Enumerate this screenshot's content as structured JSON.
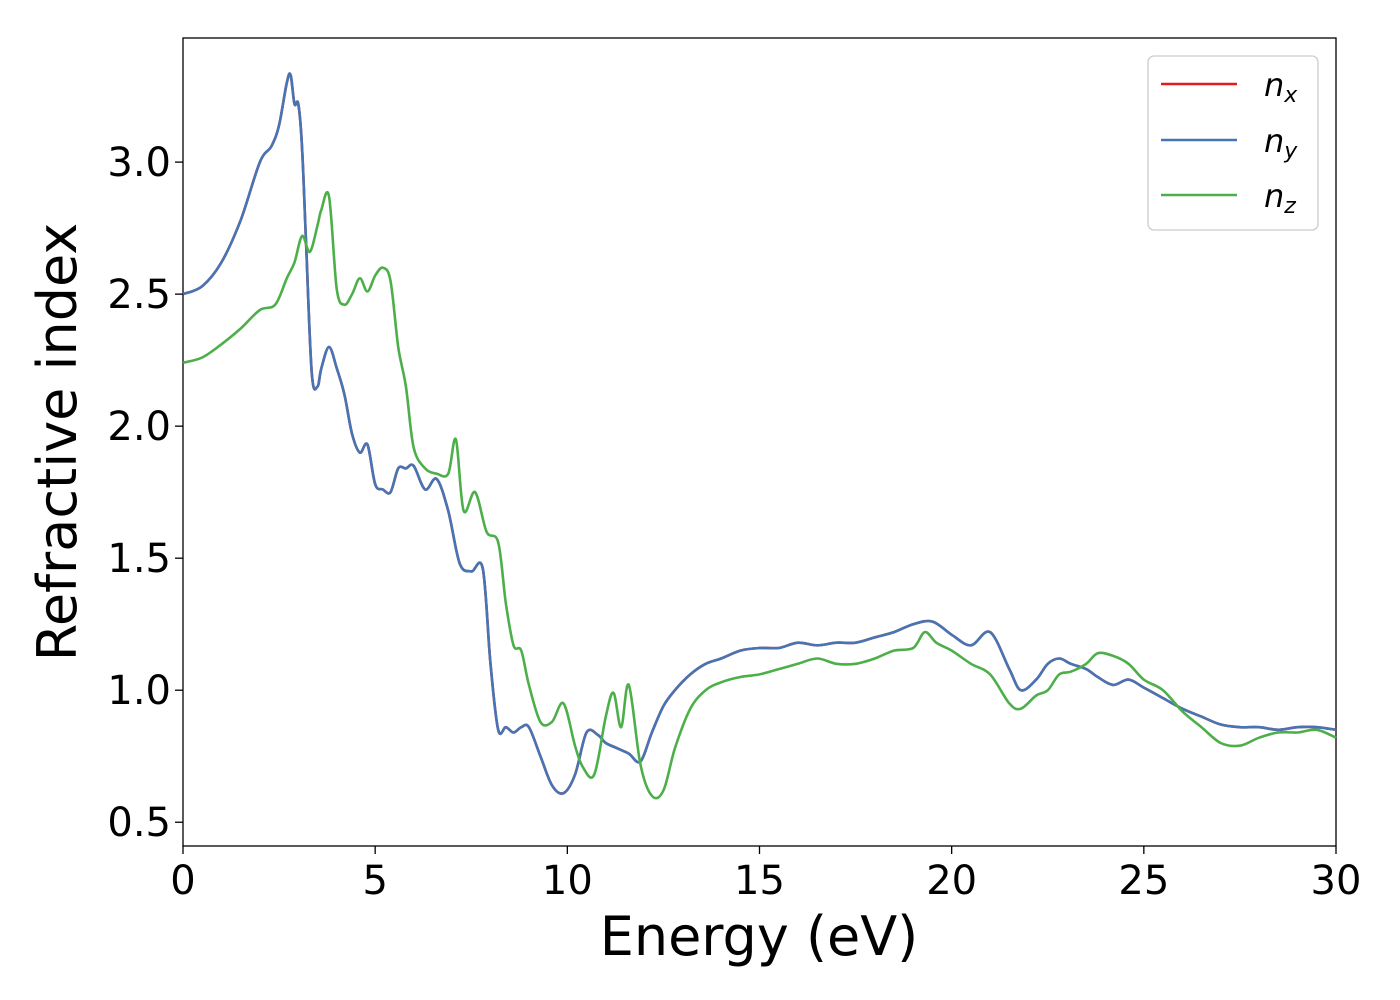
{
  "chart_data": {
    "type": "line",
    "title": "",
    "xlabel": "Energy (eV)",
    "ylabel": "Refractive index",
    "xlim": [
      0,
      30
    ],
    "ylim": [
      0.41,
      3.47
    ],
    "xticks": [
      0,
      5,
      10,
      15,
      20,
      25,
      30
    ],
    "yticks": [
      0.5,
      1.0,
      1.5,
      2.0,
      2.5,
      3.0
    ],
    "xtick_labels": [
      "0",
      "5",
      "10",
      "15",
      "20",
      "25",
      "30"
    ],
    "ytick_labels": [
      "0.5",
      "1.0",
      "1.5",
      "2.0",
      "2.5",
      "3.0"
    ],
    "grid": false,
    "legend_position": "top-right",
    "series": [
      {
        "name_base": "n",
        "name_sub": "x",
        "color": "#e41a1c",
        "x": [
          0,
          0.5,
          1,
          1.5,
          2,
          2.3,
          2.5,
          2.7,
          2.8,
          2.9,
          3.0,
          3.1,
          3.2,
          3.35,
          3.5,
          3.6,
          3.8,
          4.0,
          4.2,
          4.4,
          4.6,
          4.8,
          5.0,
          5.2,
          5.4,
          5.6,
          5.8,
          6.0,
          6.3,
          6.6,
          6.9,
          7.2,
          7.5,
          7.8,
          8.0,
          8.2,
          8.4,
          8.6,
          8.8,
          9.0,
          9.3,
          9.6,
          9.9,
          10.2,
          10.5,
          10.8,
          11.0,
          11.3,
          11.6,
          11.9,
          12.2,
          12.5,
          12.8,
          13.2,
          13.6,
          14.0,
          14.5,
          15.0,
          15.5,
          16.0,
          16.5,
          17.0,
          17.5,
          18.0,
          18.5,
          19.0,
          19.5,
          20.0,
          20.5,
          21.0,
          21.5,
          21.8,
          22.2,
          22.5,
          22.8,
          23.1,
          23.5,
          23.8,
          24.2,
          24.6,
          25.0,
          25.5,
          26.0,
          26.5,
          27.0,
          27.5,
          28.0,
          28.5,
          29.0,
          29.5,
          30.0
        ],
        "y": [
          2.5,
          2.53,
          2.62,
          2.78,
          3.0,
          3.06,
          3.14,
          3.3,
          3.33,
          3.22,
          3.22,
          3.05,
          2.7,
          2.2,
          2.15,
          2.22,
          2.3,
          2.22,
          2.12,
          1.97,
          1.9,
          1.93,
          1.78,
          1.76,
          1.75,
          1.84,
          1.84,
          1.85,
          1.76,
          1.8,
          1.68,
          1.48,
          1.45,
          1.46,
          1.1,
          0.85,
          0.86,
          0.84,
          0.86,
          0.86,
          0.75,
          0.64,
          0.61,
          0.68,
          0.84,
          0.83,
          0.8,
          0.78,
          0.76,
          0.73,
          0.84,
          0.94,
          1.0,
          1.06,
          1.1,
          1.12,
          1.15,
          1.16,
          1.16,
          1.18,
          1.17,
          1.18,
          1.18,
          1.2,
          1.22,
          1.25,
          1.26,
          1.21,
          1.17,
          1.22,
          1.08,
          1.0,
          1.04,
          1.1,
          1.12,
          1.1,
          1.08,
          1.05,
          1.02,
          1.04,
          1.01,
          0.97,
          0.93,
          0.9,
          0.87,
          0.86,
          0.86,
          0.85,
          0.86,
          0.86,
          0.85
        ]
      },
      {
        "name_base": "n",
        "name_sub": "y",
        "color": "#4575b4",
        "x": [
          0,
          0.5,
          1,
          1.5,
          2,
          2.3,
          2.5,
          2.7,
          2.8,
          2.9,
          3.0,
          3.1,
          3.2,
          3.35,
          3.5,
          3.6,
          3.8,
          4.0,
          4.2,
          4.4,
          4.6,
          4.8,
          5.0,
          5.2,
          5.4,
          5.6,
          5.8,
          6.0,
          6.3,
          6.6,
          6.9,
          7.2,
          7.5,
          7.8,
          8.0,
          8.2,
          8.4,
          8.6,
          8.8,
          9.0,
          9.3,
          9.6,
          9.9,
          10.2,
          10.5,
          10.8,
          11.0,
          11.3,
          11.6,
          11.9,
          12.2,
          12.5,
          12.8,
          13.2,
          13.6,
          14.0,
          14.5,
          15.0,
          15.5,
          16.0,
          16.5,
          17.0,
          17.5,
          18.0,
          18.5,
          19.0,
          19.5,
          20.0,
          20.5,
          21.0,
          21.5,
          21.8,
          22.2,
          22.5,
          22.8,
          23.1,
          23.5,
          23.8,
          24.2,
          24.6,
          25.0,
          25.5,
          26.0,
          26.5,
          27.0,
          27.5,
          28.0,
          28.5,
          29.0,
          29.5,
          30.0
        ],
        "y": [
          2.5,
          2.53,
          2.62,
          2.78,
          3.0,
          3.06,
          3.14,
          3.3,
          3.33,
          3.22,
          3.22,
          3.05,
          2.7,
          2.2,
          2.15,
          2.22,
          2.3,
          2.22,
          2.12,
          1.97,
          1.9,
          1.93,
          1.78,
          1.76,
          1.75,
          1.84,
          1.84,
          1.85,
          1.76,
          1.8,
          1.68,
          1.48,
          1.45,
          1.46,
          1.1,
          0.85,
          0.86,
          0.84,
          0.86,
          0.86,
          0.75,
          0.64,
          0.61,
          0.68,
          0.84,
          0.83,
          0.8,
          0.78,
          0.76,
          0.73,
          0.84,
          0.94,
          1.0,
          1.06,
          1.1,
          1.12,
          1.15,
          1.16,
          1.16,
          1.18,
          1.17,
          1.18,
          1.18,
          1.2,
          1.22,
          1.25,
          1.26,
          1.21,
          1.17,
          1.22,
          1.08,
          1.0,
          1.04,
          1.1,
          1.12,
          1.1,
          1.08,
          1.05,
          1.02,
          1.04,
          1.01,
          0.97,
          0.93,
          0.9,
          0.87,
          0.86,
          0.86,
          0.85,
          0.86,
          0.86,
          0.85
        ]
      },
      {
        "name_base": "n",
        "name_sub": "z",
        "color": "#4daf4a",
        "x": [
          0,
          0.5,
          1,
          1.5,
          2,
          2.4,
          2.7,
          2.9,
          3.1,
          3.3,
          3.5,
          3.6,
          3.8,
          4.0,
          4.2,
          4.4,
          4.6,
          4.8,
          5.0,
          5.2,
          5.4,
          5.6,
          5.8,
          6.0,
          6.3,
          6.6,
          6.9,
          7.1,
          7.3,
          7.6,
          7.9,
          8.2,
          8.4,
          8.6,
          8.8,
          9.0,
          9.3,
          9.6,
          9.9,
          10.2,
          10.4,
          10.7,
          11.0,
          11.2,
          11.4,
          11.6,
          11.9,
          12.2,
          12.5,
          12.8,
          13.2,
          13.6,
          14.0,
          14.5,
          15.0,
          15.5,
          16.0,
          16.5,
          17.0,
          17.5,
          18.0,
          18.5,
          19.0,
          19.3,
          19.6,
          20.0,
          20.5,
          21.0,
          21.5,
          21.8,
          22.2,
          22.5,
          22.8,
          23.1,
          23.5,
          23.8,
          24.2,
          24.6,
          25.0,
          25.5,
          26.0,
          26.5,
          27.0,
          27.5,
          28.0,
          28.5,
          29.0,
          29.5,
          30.0
        ],
        "y": [
          2.24,
          2.26,
          2.31,
          2.37,
          2.44,
          2.46,
          2.56,
          2.62,
          2.72,
          2.66,
          2.76,
          2.82,
          2.87,
          2.52,
          2.46,
          2.5,
          2.56,
          2.51,
          2.57,
          2.6,
          2.55,
          2.3,
          2.15,
          1.92,
          1.84,
          1.82,
          1.82,
          1.95,
          1.68,
          1.75,
          1.6,
          1.56,
          1.33,
          1.17,
          1.15,
          1.02,
          0.88,
          0.88,
          0.95,
          0.79,
          0.71,
          0.68,
          0.9,
          0.99,
          0.86,
          1.02,
          0.72,
          0.6,
          0.62,
          0.78,
          0.93,
          1.0,
          1.03,
          1.05,
          1.06,
          1.08,
          1.1,
          1.12,
          1.1,
          1.1,
          1.12,
          1.15,
          1.16,
          1.22,
          1.18,
          1.15,
          1.1,
          1.06,
          0.95,
          0.93,
          0.98,
          1.0,
          1.06,
          1.07,
          1.1,
          1.14,
          1.13,
          1.1,
          1.04,
          1.0,
          0.92,
          0.86,
          0.8,
          0.79,
          0.82,
          0.84,
          0.84,
          0.85,
          0.82
        ]
      }
    ]
  }
}
